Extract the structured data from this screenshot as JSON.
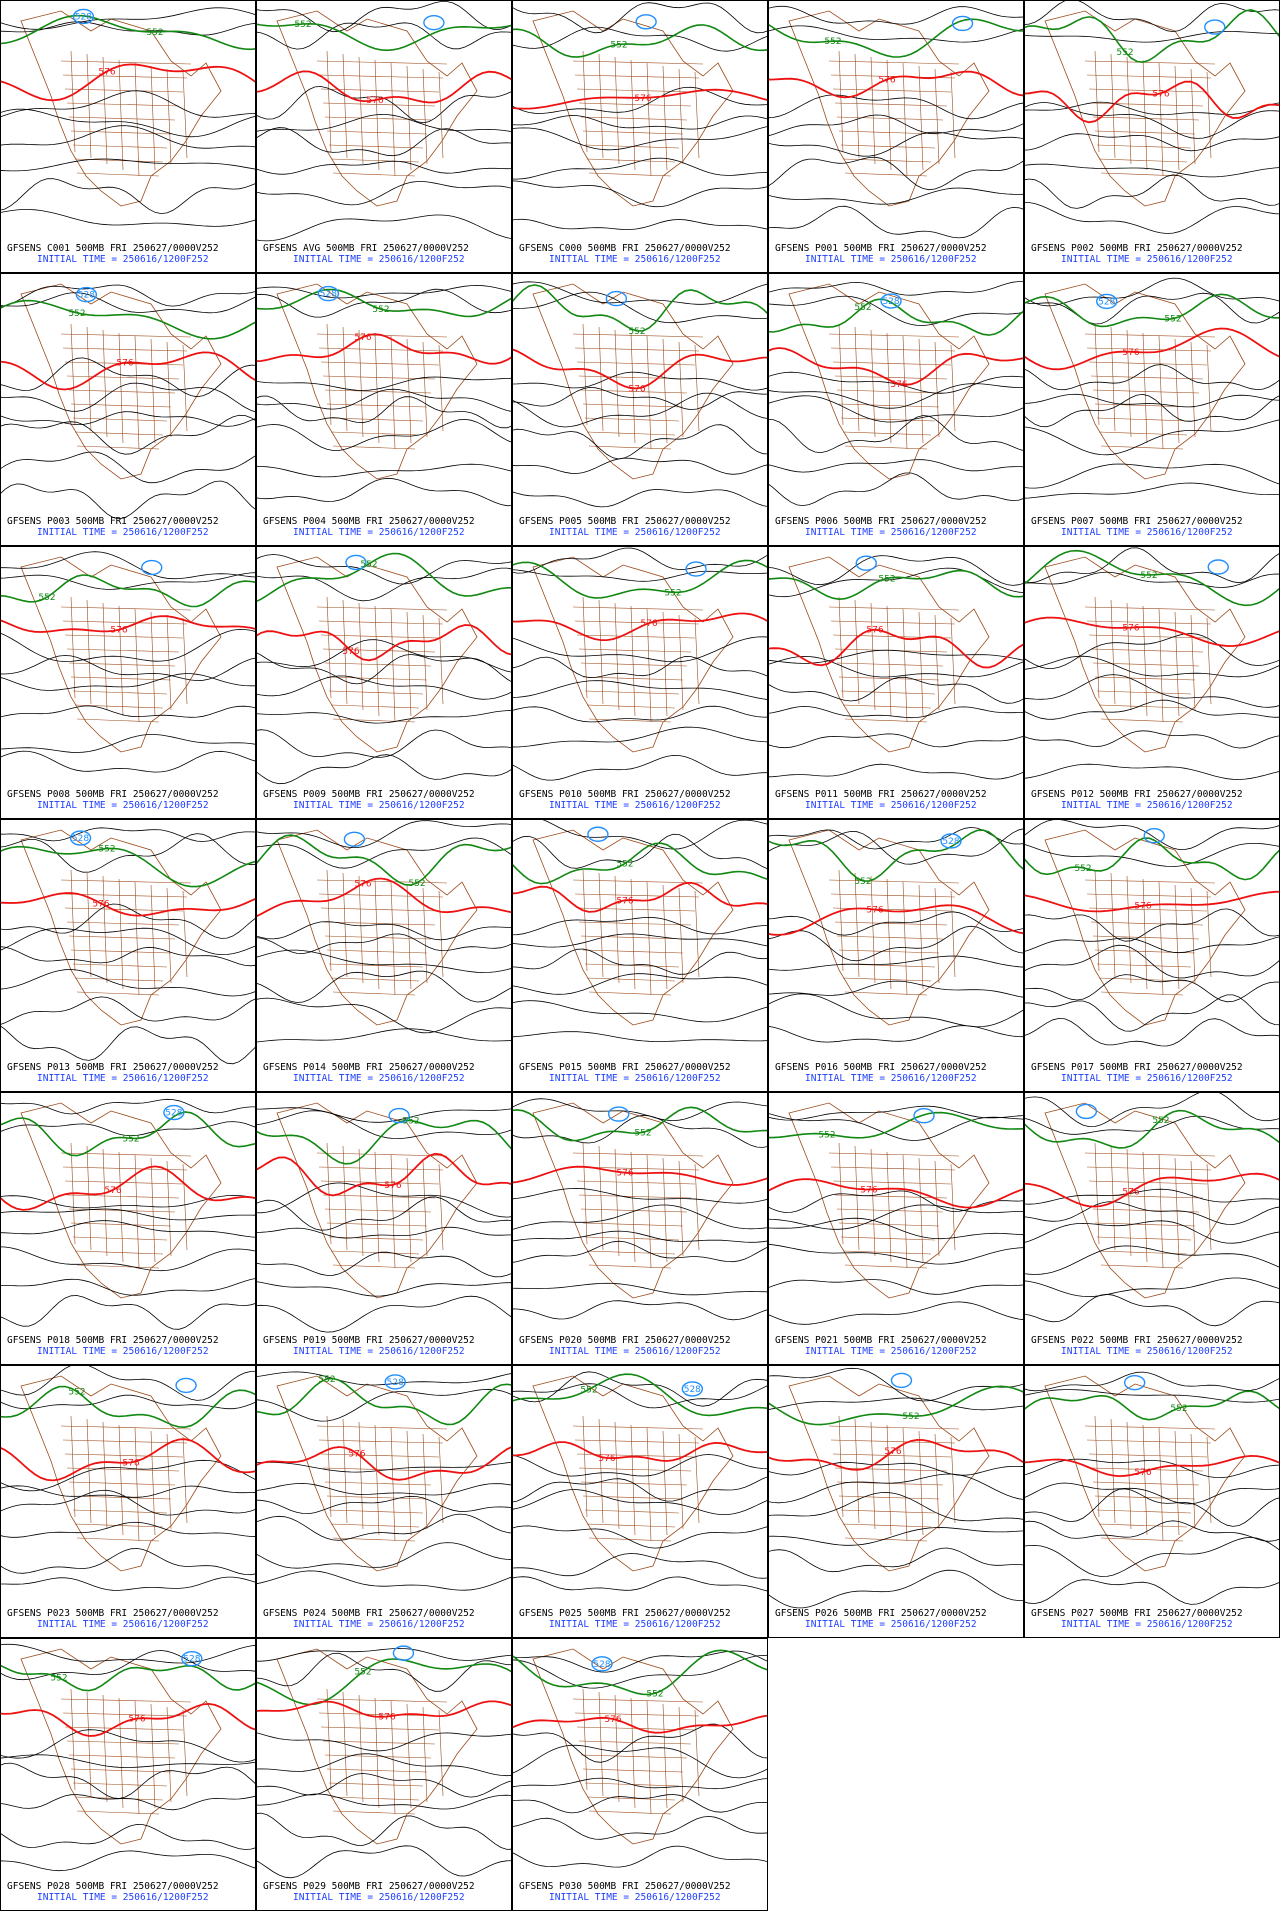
{
  "init_time": "INITIAL TIME = 250616/1200F252",
  "panels": [
    {
      "title": "GFSENS C001 500MB FRI 250627/0000V252",
      "labels": [
        "576",
        "552",
        "528"
      ]
    },
    {
      "title": "GFSENS AVG 500MB FRI 250627/0000V252",
      "labels": [
        "576",
        "552"
      ]
    },
    {
      "title": "GFSENS C000 500MB FRI 250627/0000V252",
      "labels": [
        "576",
        "552"
      ]
    },
    {
      "title": "GFSENS P001 500MB FRI 250627/0000V252",
      "labels": [
        "576",
        "552"
      ]
    },
    {
      "title": "GFSENS P002 500MB FRI 250627/0000V252",
      "labels": [
        "576",
        "552"
      ]
    },
    {
      "title": "GFSENS P003 500MB FRI 250627/0000V252",
      "labels": [
        "576",
        "552",
        "528"
      ]
    },
    {
      "title": "GFSENS P004 500MB FRI 250627/0000V252",
      "labels": [
        "576",
        "552",
        "528"
      ]
    },
    {
      "title": "GFSENS P005 500MB FRI 250627/0000V252",
      "labels": [
        "576",
        "552"
      ]
    },
    {
      "title": "GFSENS P006 500MB FRI 250627/0000V252",
      "labels": [
        "576",
        "552",
        "528"
      ]
    },
    {
      "title": "GFSENS P007 500MB FRI 250627/0000V252",
      "labels": [
        "576",
        "552",
        "528"
      ]
    },
    {
      "title": "GFSENS P008 500MB FRI 250627/0000V252",
      "labels": [
        "576",
        "552"
      ]
    },
    {
      "title": "GFSENS P009 500MB FRI 250627/0000V252",
      "labels": [
        "576",
        "552"
      ]
    },
    {
      "title": "GFSENS P010 500MB FRI 250627/0000V252",
      "labels": [
        "576",
        "552"
      ]
    },
    {
      "title": "GFSENS P011 500MB FRI 250627/0000V252",
      "labels": [
        "576",
        "552"
      ]
    },
    {
      "title": "GFSENS P012 500MB FRI 250627/0000V252",
      "labels": [
        "576",
        "552"
      ]
    },
    {
      "title": "GFSENS P013 500MB FRI 250627/0000V252",
      "labels": [
        "576",
        "552",
        "528"
      ]
    },
    {
      "title": "GFSENS P014 500MB FRI 250627/0000V252",
      "labels": [
        "576",
        "552"
      ]
    },
    {
      "title": "GFSENS P015 500MB FRI 250627/0000V252",
      "labels": [
        "576",
        "552"
      ]
    },
    {
      "title": "GFSENS P016 500MB FRI 250627/0000V252",
      "labels": [
        "576",
        "552",
        "528"
      ]
    },
    {
      "title": "GFSENS P017 500MB FRI 250627/0000V252",
      "labels": [
        "576",
        "552"
      ]
    },
    {
      "title": "GFSENS P018 500MB FRI 250627/0000V252",
      "labels": [
        "576",
        "552",
        "528"
      ]
    },
    {
      "title": "GFSENS P019 500MB FRI 250627/0000V252",
      "labels": [
        "576",
        "552"
      ]
    },
    {
      "title": "GFSENS P020 500MB FRI 250627/0000V252",
      "labels": [
        "576",
        "552"
      ]
    },
    {
      "title": "GFSENS P021 500MB FRI 250627/0000V252",
      "labels": [
        "576",
        "552"
      ]
    },
    {
      "title": "GFSENS P022 500MB FRI 250627/0000V252",
      "labels": [
        "576",
        "552"
      ]
    },
    {
      "title": "GFSENS P023 500MB FRI 250627/0000V252",
      "labels": [
        "576",
        "552"
      ]
    },
    {
      "title": "GFSENS P024 500MB FRI 250627/0000V252",
      "labels": [
        "576",
        "552",
        "528"
      ]
    },
    {
      "title": "GFSENS P025 500MB FRI 250627/0000V252",
      "labels": [
        "576",
        "552",
        "528"
      ]
    },
    {
      "title": "GFSENS P026 500MB FRI 250627/0000V252",
      "labels": [
        "576",
        "552"
      ]
    },
    {
      "title": "GFSENS P027 500MB FRI 250627/0000V252",
      "labels": [
        "576",
        "552"
      ]
    },
    {
      "title": "GFSENS P028 500MB FRI 250627/0000V252",
      "labels": [
        "576",
        "552",
        "528"
      ]
    },
    {
      "title": "GFSENS P029 500MB FRI 250627/0000V252",
      "labels": [
        "576",
        "552"
      ]
    },
    {
      "title": "GFSENS P030 500MB FRI 250627/0000V252",
      "labels": [
        "576",
        "552",
        "528"
      ]
    }
  ]
}
